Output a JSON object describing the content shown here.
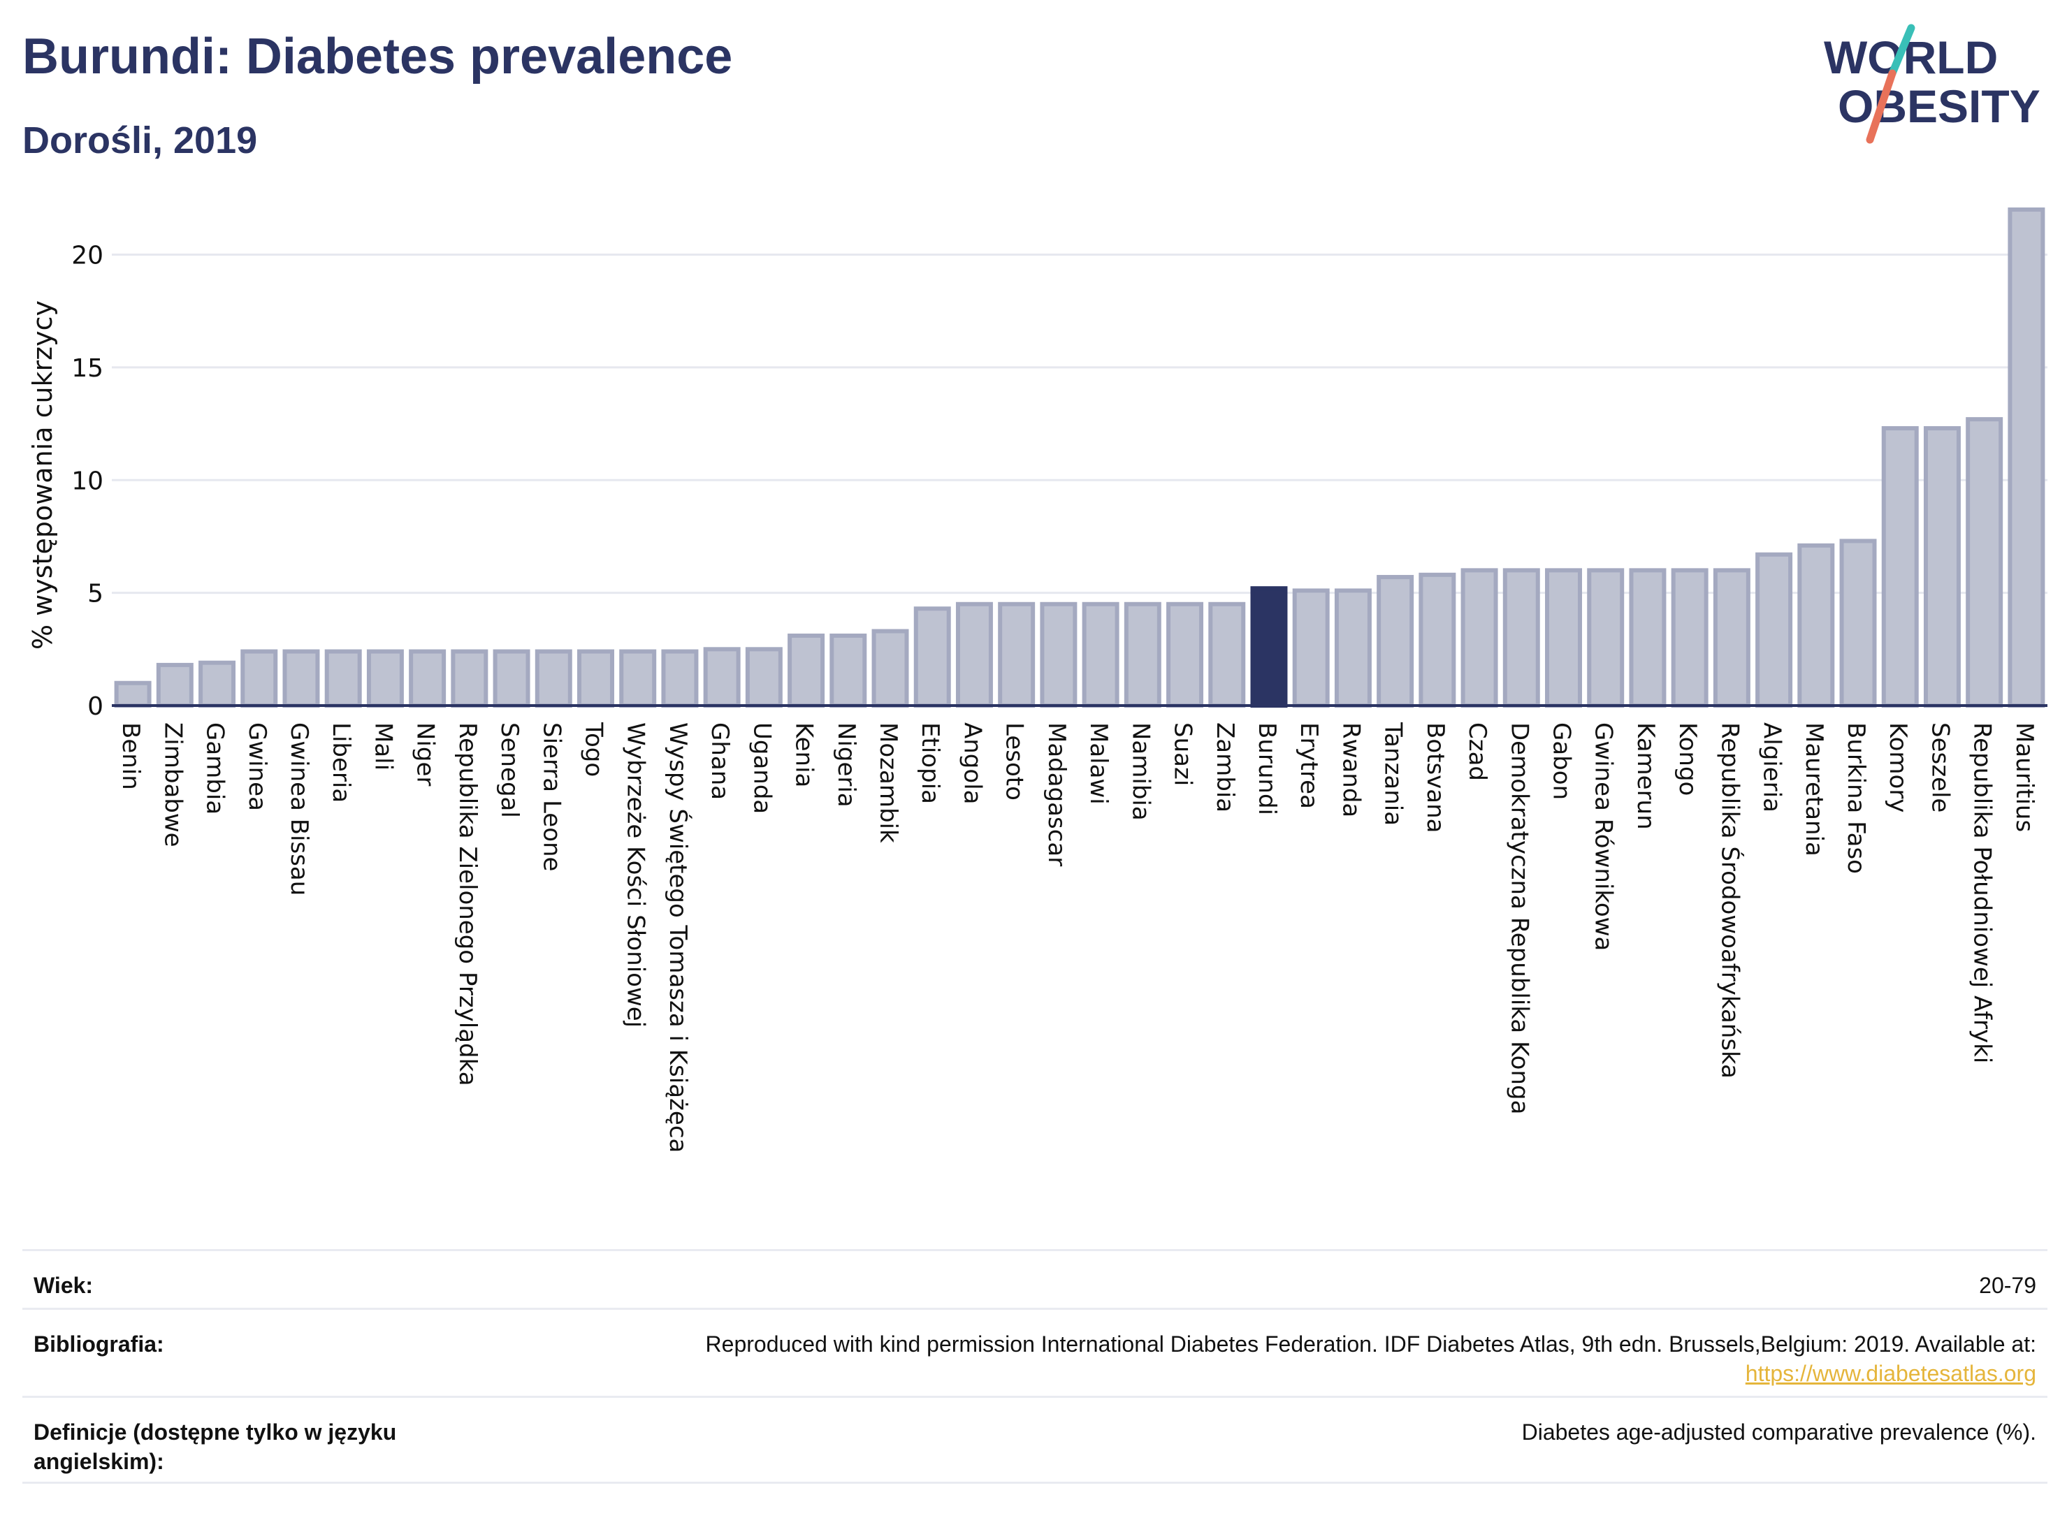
{
  "header": {
    "title": "Burundi: Diabetes prevalence",
    "subtitle": "Dorośli, 2019"
  },
  "logo": {
    "line1": "WORLD",
    "line2": "OBESITY",
    "colors": {
      "text": "#2b3463",
      "accent_teal": "#39bfb7",
      "accent_red": "#e8725a"
    }
  },
  "colors": {
    "bar_default": "#bec2d1",
    "bar_outline": "#a4a9c0",
    "bar_highlight": "#2b3463",
    "grid": "#e6e8ef",
    "axis": "#2b3463"
  },
  "chart_data": {
    "type": "bar",
    "ylabel": "% występowania cukrzycy",
    "ylim": [
      0,
      22
    ],
    "yticks": [
      0,
      5,
      10,
      15,
      20
    ],
    "grid": true,
    "highlight": "Burundi",
    "categories": [
      "Benin",
      "Zimbabwe",
      "Gambia",
      "Gwinea",
      "Gwinea Bissau",
      "Liberia",
      "Mali",
      "Niger",
      "Republika Zielonego Przylądka",
      "Senegal",
      "Sierra Leone",
      "Togo",
      "Wybrzeże Kości Słoniowej",
      "Wyspy Świętego Tomasza i Książęca",
      "Ghana",
      "Uganda",
      "Kenia",
      "Nigeria",
      "Mozambik",
      "Etiopia",
      "Angola",
      "Lesoto",
      "Madagascar",
      "Malawi",
      "Namibia",
      "Suazi",
      "Zambia",
      "Burundi",
      "Erytrea",
      "Rwanda",
      "Tanzania",
      "Botsvana",
      "Czad",
      "Demokratyczna Republika Konga",
      "Gabon",
      "Gwinea Równikowa",
      "Kamerun",
      "Kongo",
      "Republika Środowoafrykańska",
      "Algieria",
      "Mauretania",
      "Burkina Faso",
      "Komory",
      "Seszele",
      "Republika Południowej Afryki",
      "Mauritius"
    ],
    "values": [
      1.0,
      1.8,
      1.9,
      2.4,
      2.4,
      2.4,
      2.4,
      2.4,
      2.4,
      2.4,
      2.4,
      2.4,
      2.4,
      2.4,
      2.5,
      2.5,
      3.1,
      3.1,
      3.3,
      4.3,
      4.5,
      4.5,
      4.5,
      4.5,
      4.5,
      4.5,
      4.5,
      5.2,
      5.1,
      5.1,
      5.7,
      5.8,
      6.0,
      6.0,
      6.0,
      6.0,
      6.0,
      6.0,
      6.0,
      6.7,
      7.1,
      7.3,
      12.3,
      12.3,
      12.7,
      22.0
    ]
  },
  "info": {
    "rows": [
      {
        "label": "Wiek:",
        "value": "20-79"
      },
      {
        "label": "Bibliografia:",
        "value": "Reproduced with kind permission International Diabetes Federation. IDF Diabetes Atlas, 9th edn. Brussels,Belgium: 2019. Available at:",
        "link": "https://www.diabetesatlas.org"
      },
      {
        "label": "Definicje (dostępne tylko w języku angielskim):",
        "value": "Diabetes age-adjusted comparative prevalence (%)."
      }
    ]
  }
}
